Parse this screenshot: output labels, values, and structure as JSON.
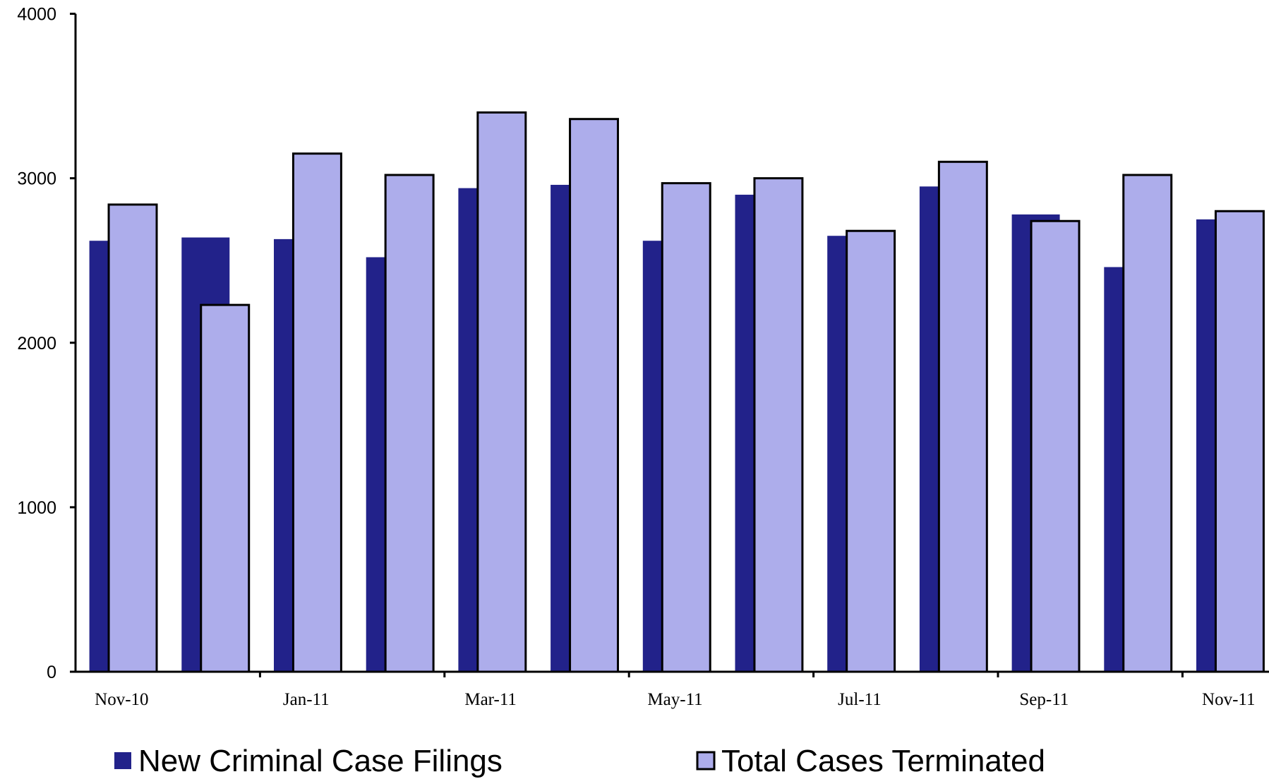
{
  "chart_data": {
    "type": "bar",
    "categories": [
      "Nov-10",
      null,
      "Jan-11",
      null,
      "Mar-11",
      null,
      "May-11",
      null,
      "Jul-11",
      null,
      "Sep-11",
      null,
      "Nov-11"
    ],
    "series": [
      {
        "name": "New Criminal Case Filings",
        "color": "#22228a",
        "values": [
          2620,
          2640,
          2630,
          2520,
          2940,
          2960,
          2620,
          2900,
          2650,
          2950,
          2780,
          2460,
          2750
        ]
      },
      {
        "name": "Total Cases Terminated",
        "color": "#adadeb",
        "values": [
          2840,
          2230,
          3150,
          3020,
          3400,
          3360,
          2970,
          3000,
          2680,
          3100,
          2740,
          3020,
          2800
        ]
      }
    ],
    "ylim": [
      0,
      4000
    ],
    "yticks": [
      0,
      1000,
      2000,
      3000,
      4000
    ],
    "grid": false
  }
}
